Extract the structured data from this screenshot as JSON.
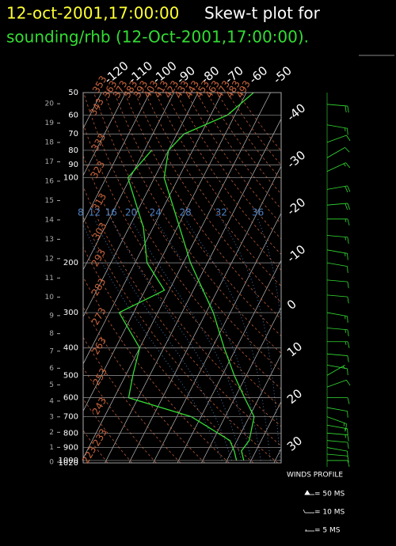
{
  "chart_data": {
    "type": "skewt",
    "title_time": "12-oct-2001,17:00:00",
    "title": "Skew-t plot for",
    "subtitle": "sounding/rhb (12-Oct-2001,17:00:00).",
    "pressure": [
      1000,
      925,
      850,
      700,
      600,
      500,
      400,
      300,
      250,
      200,
      150,
      100,
      80,
      70,
      60,
      50
    ],
    "series": [
      {
        "name": "Temperature",
        "color": "#33dd33",
        "values": [
          17,
          14,
          15,
          12,
          4,
          -5,
          -15,
          -27,
          -36,
          -47,
          -59,
          -76,
          -80,
          -77,
          -63,
          -57
        ]
      },
      {
        "name": "Dewpoint",
        "color": "#33dd33",
        "values": [
          14,
          11,
          7,
          -14,
          -44,
          -47,
          -50,
          -66,
          -52,
          -65,
          -74,
          -91,
          -87,
          null,
          null,
          null
        ]
      }
    ],
    "ylim": [
      1020,
      50
    ],
    "log_y": true,
    "yticks": [
      50,
      60,
      70,
      80,
      90,
      100,
      200,
      300,
      400,
      500,
      600,
      700,
      800,
      900,
      1000,
      1020
    ],
    "height_ticks": [
      0,
      1,
      2,
      3,
      4,
      5,
      6,
      7,
      8,
      9,
      10,
      11,
      12,
      13,
      14,
      15,
      16,
      17,
      18,
      19,
      20
    ],
    "xlim": [
      -49,
      33
    ],
    "xticks": [
      -120,
      -110,
      -100,
      -90,
      -80,
      -70,
      -60,
      -50,
      -40,
      -30,
      -20,
      -10,
      0,
      10,
      20,
      30
    ],
    "dry_adiabats": [
      213,
      223,
      233,
      243,
      253,
      263,
      273,
      283,
      293,
      303,
      313,
      323,
      333,
      343,
      353,
      363,
      373,
      383,
      393,
      403,
      413,
      423,
      433,
      443,
      453,
      463,
      473,
      483,
      493
    ],
    "moist_adiabats": [
      8,
      12,
      16,
      20,
      24,
      28,
      32,
      36
    ],
    "winds": {
      "title": "WINDS PROFILE",
      "legend": [
        "= 50 MS",
        "= 10 MS",
        "= 5 MS"
      ],
      "color": "#33dd33",
      "pressure": [
        55,
        65,
        75,
        85,
        95,
        110,
        125,
        140,
        160,
        180,
        200,
        230,
        260,
        300,
        340,
        380,
        420,
        460,
        500,
        550,
        600,
        650,
        700,
        750,
        800,
        850,
        900,
        950,
        1000
      ],
      "direction": [
        95,
        100,
        70,
        60,
        65,
        80,
        85,
        90,
        95,
        100,
        100,
        95,
        95,
        100,
        95,
        90,
        95,
        100,
        60,
        70,
        90,
        100,
        110,
        100,
        95,
        95,
        100,
        95,
        90
      ],
      "speed": [
        20,
        15,
        10,
        10,
        15,
        20,
        20,
        15,
        15,
        15,
        10,
        10,
        10,
        15,
        15,
        15,
        10,
        10,
        5,
        10,
        10,
        10,
        15,
        15,
        15,
        10,
        10,
        10,
        10
      ]
    }
  }
}
